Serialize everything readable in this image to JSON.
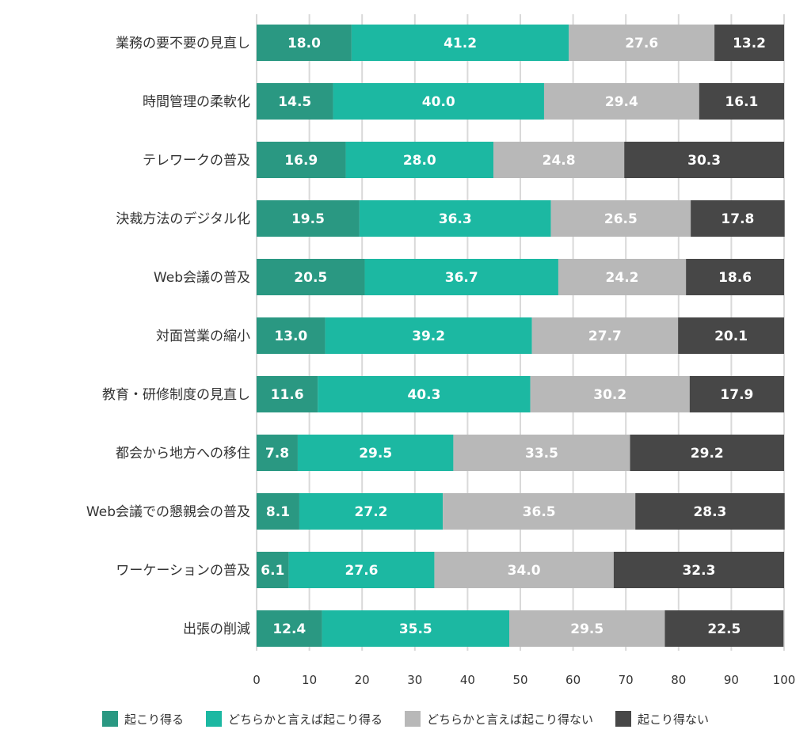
{
  "chart_data": {
    "type": "bar",
    "orientation": "horizontal",
    "stacked": true,
    "categories": [
      "業務の要不要の見直し",
      "時間管理の柔軟化",
      "テレワークの普及",
      "決裁方法のデジタル化",
      "Web会議の普及",
      "対面営業の縮小",
      "教育・研修制度の見直し",
      "都会から地方への移住",
      "Web会議での懇親会の普及",
      "ワーケーションの普及",
      "出張の削減"
    ],
    "series": [
      {
        "name": "起こり得る",
        "color": "#2a9882",
        "values": [
          18.0,
          14.5,
          16.9,
          19.5,
          20.5,
          13.0,
          11.6,
          7.8,
          8.1,
          6.1,
          12.4
        ]
      },
      {
        "name": "どちらかと言えば起こり得る",
        "color": "#1cb8a2",
        "values": [
          41.2,
          40.0,
          28.0,
          36.3,
          36.7,
          39.2,
          40.3,
          29.5,
          27.2,
          27.6,
          35.5
        ]
      },
      {
        "name": "どちらかと言えば起こり得ない",
        "color": "#b8b8b8",
        "values": [
          27.6,
          29.4,
          24.8,
          26.5,
          24.2,
          27.7,
          30.2,
          33.5,
          36.5,
          34.0,
          29.5
        ]
      },
      {
        "name": "起こり得ない",
        "color": "#474747",
        "values": [
          13.2,
          16.1,
          30.3,
          17.8,
          18.6,
          20.1,
          17.9,
          29.2,
          28.3,
          32.3,
          22.5
        ]
      }
    ],
    "xlim": [
      0,
      100
    ],
    "xticks": [
      0,
      10,
      20,
      30,
      40,
      50,
      60,
      70,
      80,
      90,
      100
    ],
    "grid": true,
    "legend_position": "bottom",
    "title": "",
    "xlabel": "",
    "ylabel": ""
  }
}
